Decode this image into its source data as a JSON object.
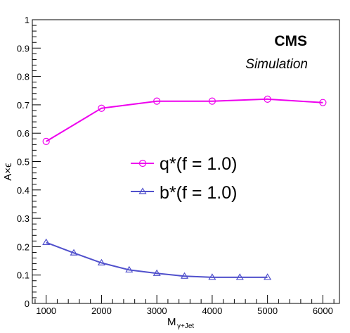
{
  "chart_data": {
    "type": "line",
    "xlabel": "M",
    "xlabel_sub": "γ+Jet",
    "ylabel": "A×ϵ",
    "xlim": [
      750,
      6300
    ],
    "ylim": [
      0,
      1
    ],
    "xticks": [
      1000,
      2000,
      3000,
      4000,
      5000,
      6000
    ],
    "yticks": [
      0,
      0.1,
      0.2,
      0.3,
      0.4,
      0.5,
      0.6,
      0.7,
      0.8,
      0.9,
      1
    ],
    "yticklabels": [
      "0",
      "0.1",
      "0.2",
      "0.3",
      "0.4",
      "0.5",
      "0.6",
      "0.7",
      "0.8",
      "0.9",
      "1"
    ],
    "annotations": {
      "experiment": "CMS",
      "status": "Simulation"
    },
    "legend_position": "center",
    "grid": false,
    "series": [
      {
        "name": "q*(f = 1.0)",
        "color": "#ee00ee",
        "marker": "circle",
        "x": [
          1000,
          2000,
          3000,
          4000,
          5000,
          6000
        ],
        "y": [
          0.571,
          0.688,
          0.713,
          0.713,
          0.72,
          0.708
        ]
      },
      {
        "name": "b*(f = 1.0)",
        "color": "#5050cc",
        "marker": "triangle",
        "x": [
          1000,
          1500,
          2000,
          2500,
          3000,
          3500,
          4000,
          4500,
          5000
        ],
        "y": [
          0.215,
          0.178,
          0.143,
          0.118,
          0.106,
          0.096,
          0.092,
          0.092,
          0.092
        ]
      }
    ]
  }
}
